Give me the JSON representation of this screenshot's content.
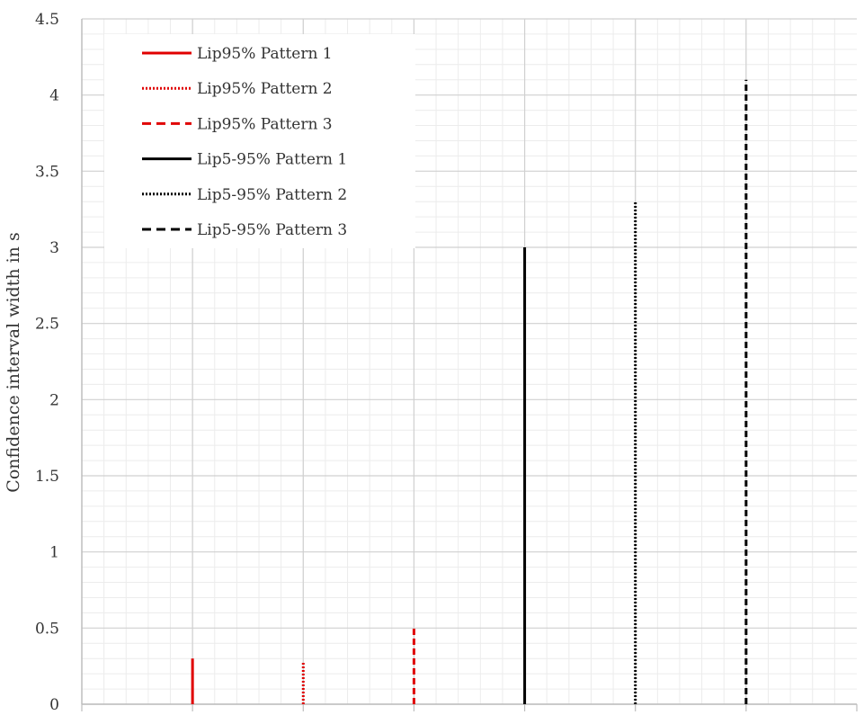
{
  "chart_data": {
    "type": "bar",
    "title": "",
    "xlabel": "",
    "ylabel": "Confidence interval width in s",
    "ylim": [
      0,
      4.5
    ],
    "y_ticks": [
      "0",
      "0.5",
      "1",
      "1.5",
      "2",
      "2.5",
      "3",
      "3.5",
      "4",
      "4.5"
    ],
    "grid": true,
    "legend_position": "top-left",
    "series": [
      {
        "name": "Lip95% Pattern 1",
        "value": 0.3,
        "color": "#e00000",
        "style": "solid"
      },
      {
        "name": "Lip95% Pattern 2",
        "value": 0.28,
        "color": "#e00000",
        "style": "dotted"
      },
      {
        "name": "Lip95% Pattern 3",
        "value": 0.5,
        "color": "#e00000",
        "style": "dashed"
      },
      {
        "name": "Lip5-95% Pattern 1",
        "value": 3.0,
        "color": "#000000",
        "style": "solid"
      },
      {
        "name": "Lip5-95% Pattern 2",
        "value": 3.3,
        "color": "#000000",
        "style": "dotted"
      },
      {
        "name": "Lip5-95% Pattern 3",
        "value": 4.1,
        "color": "#000000",
        "style": "dashed"
      }
    ]
  }
}
